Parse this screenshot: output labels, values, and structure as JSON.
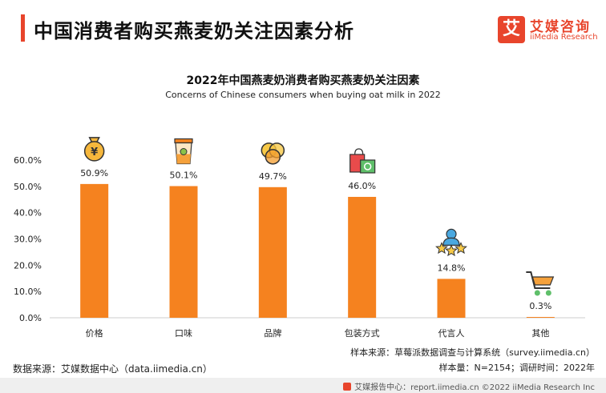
{
  "page": {
    "title": "中国消费者购买燕麦奶关注因素分析",
    "logo_mark": "艾",
    "logo_cn": "艾媒咨询",
    "logo_en": "iiMedia Research"
  },
  "chart_data": {
    "type": "bar",
    "title": "2022年中国燕麦奶消费者购买燕麦奶关注因素",
    "subtitle": "Concerns of Chinese consumers when buying oat milk in 2022",
    "categories": [
      "价格",
      "口味",
      "品牌",
      "包装方式",
      "代言人",
      "其他"
    ],
    "values": [
      50.9,
      50.1,
      49.7,
      46.0,
      14.8,
      0.3
    ],
    "value_labels": [
      "50.9%",
      "50.1%",
      "49.7%",
      "46.0%",
      "14.8%",
      "0.3%"
    ],
    "icons": [
      "money-bag-icon",
      "drink-cup-icon",
      "brand-circles-icon",
      "shopping-bags-icon",
      "spokesperson-stars-icon",
      "shopping-cart-icon"
    ],
    "y_ticks": [
      "0.0%",
      "10.0%",
      "20.0%",
      "30.0%",
      "40.0%",
      "50.0%",
      "60.0%"
    ],
    "ylim": [
      0,
      60
    ],
    "bar_color": "#f5821f",
    "grid": false
  },
  "footer": {
    "data_source": "数据来源：艾媒数据中心（data.iimedia.cn）",
    "sample_source": "样本来源：草莓派数据调查与计算系统（survey.iimedia.cn）",
    "sample_size": "样本量：N=2154；调研时间：2022年",
    "copyright": "艾媒报告中心：report.iimedia.cn  ©2022  iiMedia Research  Inc"
  }
}
